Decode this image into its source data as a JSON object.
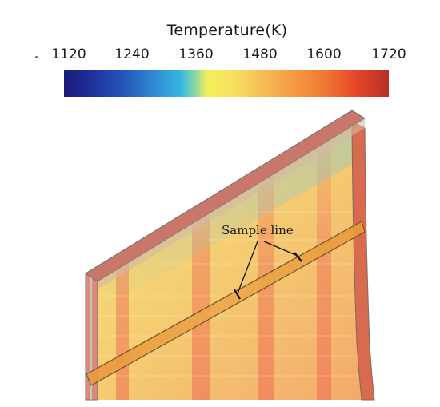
{
  "legend": {
    "title": "Temperature(K)",
    "ticks": [
      "1120",
      "1240",
      "1360",
      "1480",
      "1600",
      "1720"
    ]
  },
  "annotation": {
    "sample_line_label": "Sample line"
  }
}
